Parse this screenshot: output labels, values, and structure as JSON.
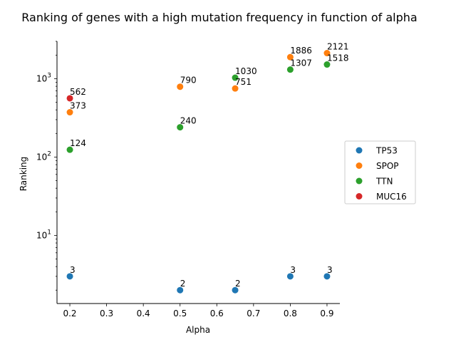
{
  "chart_data": {
    "type": "scatter",
    "title": "Ranking of genes with a high mutation frequency in function of alpha",
    "xlabel": "Alpha",
    "ylabel": "Ranking",
    "xscale": "linear",
    "yscale": "log",
    "xlim": [
      0.165,
      0.935
    ],
    "ylim": [
      1.35,
      3000
    ],
    "xticks": [
      0.2,
      0.3,
      0.4,
      0.5,
      0.6,
      0.7,
      0.8,
      0.9
    ],
    "xtick_labels": [
      "0.2",
      "0.3",
      "0.4",
      "0.5",
      "0.6",
      "0.7",
      "0.8",
      "0.9"
    ],
    "yticks": [
      10,
      100,
      1000
    ],
    "ytick_labels": [
      "10^1",
      "10^2",
      "10^3"
    ],
    "legend_position": "center-right",
    "series": [
      {
        "name": "TP53",
        "color": "#1f77b4",
        "points": [
          {
            "x": 0.2,
            "y": 3,
            "label": "3"
          },
          {
            "x": 0.5,
            "y": 2,
            "label": "2"
          },
          {
            "x": 0.65,
            "y": 2,
            "label": "2"
          },
          {
            "x": 0.8,
            "y": 3,
            "label": "3"
          },
          {
            "x": 0.9,
            "y": 3,
            "label": "3"
          }
        ]
      },
      {
        "name": "SPOP",
        "color": "#ff7f0e",
        "points": [
          {
            "x": 0.2,
            "y": 373,
            "label": "373"
          },
          {
            "x": 0.5,
            "y": 790,
            "label": "790"
          },
          {
            "x": 0.65,
            "y": 751,
            "label": "751"
          },
          {
            "x": 0.8,
            "y": 1886,
            "label": "1886"
          },
          {
            "x": 0.9,
            "y": 2121,
            "label": "2121"
          }
        ]
      },
      {
        "name": "TTN",
        "color": "#2ca02c",
        "points": [
          {
            "x": 0.2,
            "y": 124,
            "label": "124"
          },
          {
            "x": 0.5,
            "y": 240,
            "label": "240"
          },
          {
            "x": 0.65,
            "y": 1030,
            "label": "1030"
          },
          {
            "x": 0.8,
            "y": 1307,
            "label": "1307"
          },
          {
            "x": 0.9,
            "y": 1518,
            "label": "1518"
          }
        ]
      },
      {
        "name": "MUC16",
        "color": "#d62728",
        "points": [
          {
            "x": 0.2,
            "y": 562,
            "label": "562"
          }
        ]
      }
    ]
  }
}
